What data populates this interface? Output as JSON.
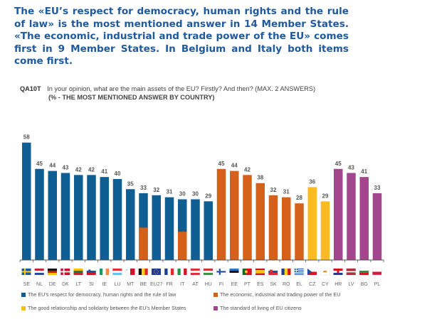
{
  "headline": "The «EU’s respect for democracy, human rights and the rule of law» is the most mentioned answer in 14 Member States. «The economic, industrial and trade power of the EU» comes first in 9 Member States. In Belgium and Italy both items come first.",
  "question": {
    "code": "QA10T",
    "text": "In your opinion, what are the main assets of the EU? Firstly? And then? (MAX. 2 ANSWERS)",
    "subtitle": "(% - THE MOST MENTIONED ANSWER BY COUNTRY)"
  },
  "colors": {
    "democracy": "#0e5e94",
    "economic": "#d4601a",
    "relationship": "#fbbb21",
    "living": "#a2478e"
  },
  "chart_data": {
    "type": "bar",
    "title": "QA10T In your opinion, what are the main assets of the EU? Firstly? And then? (MAX. 2 ANSWERS) (% - THE MOST MENTIONED ANSWER BY COUNTRY)",
    "xlabel": "",
    "ylabel": "%",
    "ylim": [
      0,
      60
    ],
    "grid": false,
    "legend_position": "bottom",
    "categories": [
      "SE",
      "NL",
      "DE",
      "DK",
      "LT",
      "SI",
      "IE",
      "LU",
      "MT",
      "BE",
      "EU27",
      "FR",
      "IT",
      "AT",
      "HU",
      "FI",
      "EE",
      "PT",
      "ES",
      "SK",
      "RO",
      "EL",
      "CZ",
      "CY",
      "HR",
      "LV",
      "BG",
      "PL"
    ],
    "values": [
      58,
      45,
      44,
      43,
      42,
      42,
      41,
      40,
      35,
      33,
      32,
      31,
      30,
      30,
      29,
      45,
      44,
      42,
      38,
      32,
      31,
      28,
      36,
      29,
      45,
      43,
      41,
      33
    ],
    "bar_series": [
      "democracy",
      "democracy",
      "democracy",
      "democracy",
      "democracy",
      "democracy",
      "democracy",
      "democracy",
      "democracy",
      "democracy",
      "democracy",
      "democracy",
      "democracy",
      "democracy",
      "democracy",
      "economic",
      "economic",
      "economic",
      "economic",
      "economic",
      "economic",
      "economic",
      "relationship",
      "relationship",
      "living",
      "living",
      "living",
      "living"
    ],
    "overlay": [
      {
        "category": "BE",
        "series": "economic",
        "visible_portion": 16
      },
      {
        "category": "IT",
        "series": "economic",
        "visible_portion": 14
      }
    ],
    "flags": [
      "SE",
      "NL",
      "DE",
      "DK",
      "LT",
      "SI",
      "IE",
      "LU",
      "MT",
      "BE",
      "EU",
      "FR",
      "IT",
      "AT",
      "HU",
      "FI",
      "EE",
      "PT",
      "ES",
      "SK",
      "RO",
      "EL",
      "CZ",
      "CY",
      "HR",
      "LV",
      "BG",
      "PL"
    ],
    "legend": [
      {
        "key": "democracy",
        "label": "The EU’s respect for democracy, human rights and the rule of law"
      },
      {
        "key": "economic",
        "label": "The economic, industrial and trading power of the EU"
      },
      {
        "key": "relationship",
        "label": "The good relationship and solidarity between the EU’s Member States"
      },
      {
        "key": "living",
        "label": "The standard of living of EU citizens"
      }
    ]
  }
}
